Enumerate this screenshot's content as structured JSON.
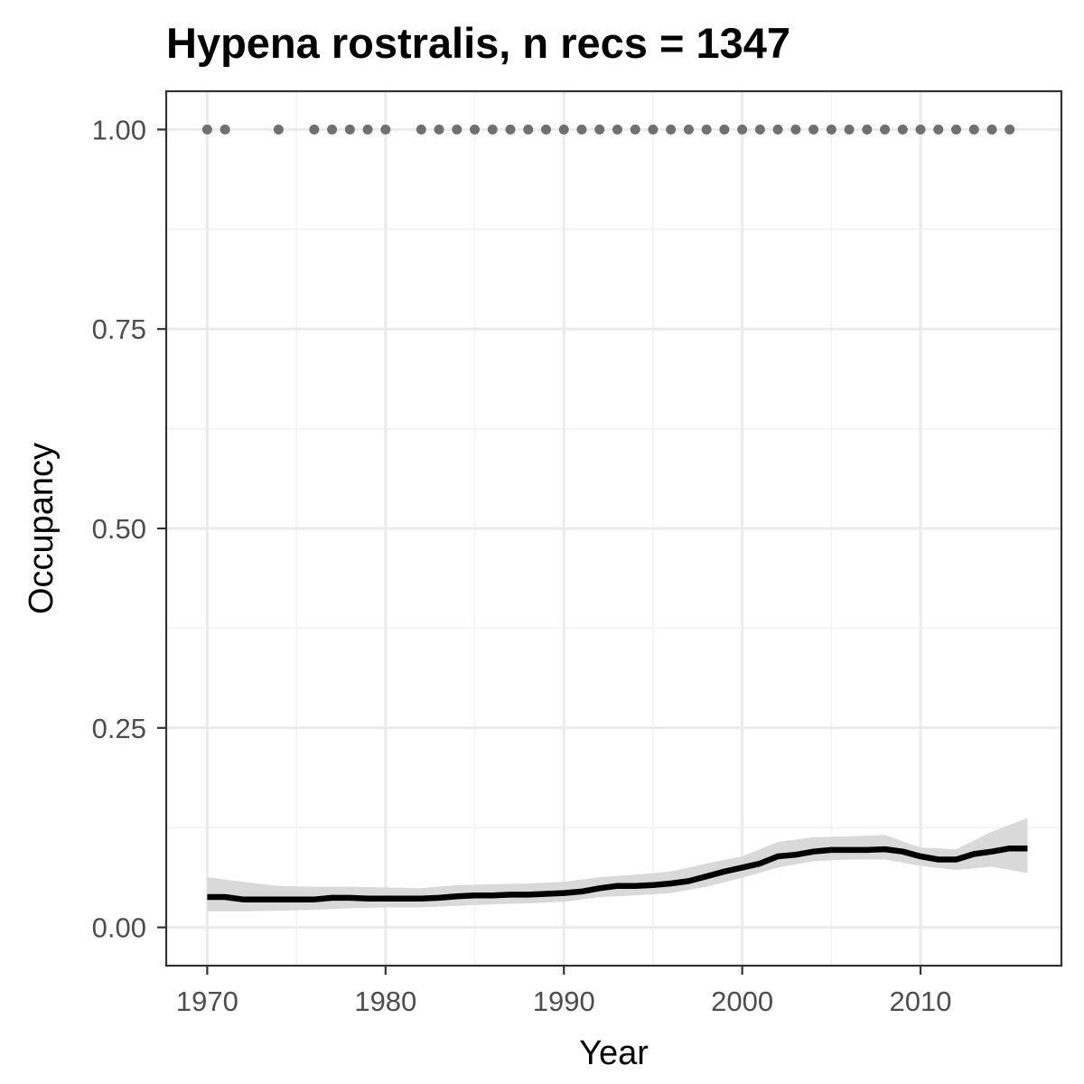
{
  "chart_data": {
    "type": "line",
    "title": "Hypena rostralis, n recs = 1347",
    "xlabel": "Year",
    "ylabel": "Occupancy",
    "xlim": [
      1967.7,
      2017.9
    ],
    "ylim": [
      -0.048,
      1.048
    ],
    "x_ticks": [
      1970,
      1980,
      1990,
      2000,
      2010
    ],
    "x_tick_labels": [
      "1970",
      "1980",
      "1990",
      "2000",
      "2010"
    ],
    "y_ticks": [
      0,
      0.25,
      0.5,
      0.75,
      1
    ],
    "y_tick_labels": [
      "0.00",
      "0.25",
      "0.50",
      "0.75",
      "1.00"
    ],
    "grid": true,
    "legend": "none",
    "series": [
      {
        "role": "mean occupancy",
        "color": "#000000",
        "x": [
          1970,
          1971,
          1972,
          1973,
          1974,
          1975,
          1976,
          1977,
          1978,
          1979,
          1980,
          1981,
          1982,
          1983,
          1984,
          1985,
          1986,
          1987,
          1988,
          1989,
          1990,
          1991,
          1992,
          1993,
          1994,
          1995,
          1996,
          1997,
          1998,
          1999,
          2000,
          2001,
          2002,
          2003,
          2004,
          2005,
          2006,
          2007,
          2008,
          2009,
          2010,
          2011,
          2012,
          2013,
          2014,
          2015,
          2016
        ],
        "y": [
          0.038,
          0.038,
          0.035,
          0.035,
          0.035,
          0.035,
          0.035,
          0.037,
          0.037,
          0.036,
          0.036,
          0.036,
          0.036,
          0.037,
          0.039,
          0.04,
          0.04,
          0.041,
          0.041,
          0.042,
          0.043,
          0.045,
          0.049,
          0.052,
          0.052,
          0.053,
          0.055,
          0.058,
          0.064,
          0.07,
          0.075,
          0.08,
          0.089,
          0.091,
          0.095,
          0.097,
          0.097,
          0.097,
          0.098,
          0.095,
          0.089,
          0.085,
          0.085,
          0.092,
          0.095,
          0.099,
          0.099
        ]
      }
    ],
    "ribbon": {
      "role": "95% credible interval",
      "color": "#d9d9d9",
      "x": [
        1970,
        1972,
        1974,
        1976,
        1978,
        1980,
        1982,
        1984,
        1986,
        1988,
        1990,
        1992,
        1994,
        1996,
        1998,
        2000,
        2002,
        2004,
        2006,
        2008,
        2010,
        2012,
        2014,
        2016
      ],
      "lower": [
        0.02,
        0.02,
        0.021,
        0.022,
        0.024,
        0.025,
        0.025,
        0.027,
        0.029,
        0.03,
        0.032,
        0.038,
        0.04,
        0.043,
        0.051,
        0.062,
        0.075,
        0.083,
        0.085,
        0.085,
        0.077,
        0.072,
        0.076,
        0.068
      ],
      "upper": [
        0.063,
        0.057,
        0.052,
        0.051,
        0.051,
        0.05,
        0.049,
        0.053,
        0.054,
        0.055,
        0.057,
        0.063,
        0.066,
        0.07,
        0.08,
        0.089,
        0.107,
        0.113,
        0.114,
        0.116,
        0.1,
        0.098,
        0.12,
        0.137
      ]
    },
    "points": {
      "role": "years with records",
      "color": "#707070",
      "y": 1,
      "x": [
        1970,
        1971,
        1974,
        1976,
        1977,
        1978,
        1979,
        1980,
        1982,
        1983,
        1984,
        1985,
        1986,
        1987,
        1988,
        1989,
        1990,
        1991,
        1992,
        1993,
        1994,
        1995,
        1996,
        1997,
        1998,
        1999,
        2000,
        2001,
        2002,
        2003,
        2004,
        2005,
        2006,
        2007,
        2008,
        2009,
        2010,
        2011,
        2012,
        2013,
        2014,
        2015
      ]
    }
  }
}
